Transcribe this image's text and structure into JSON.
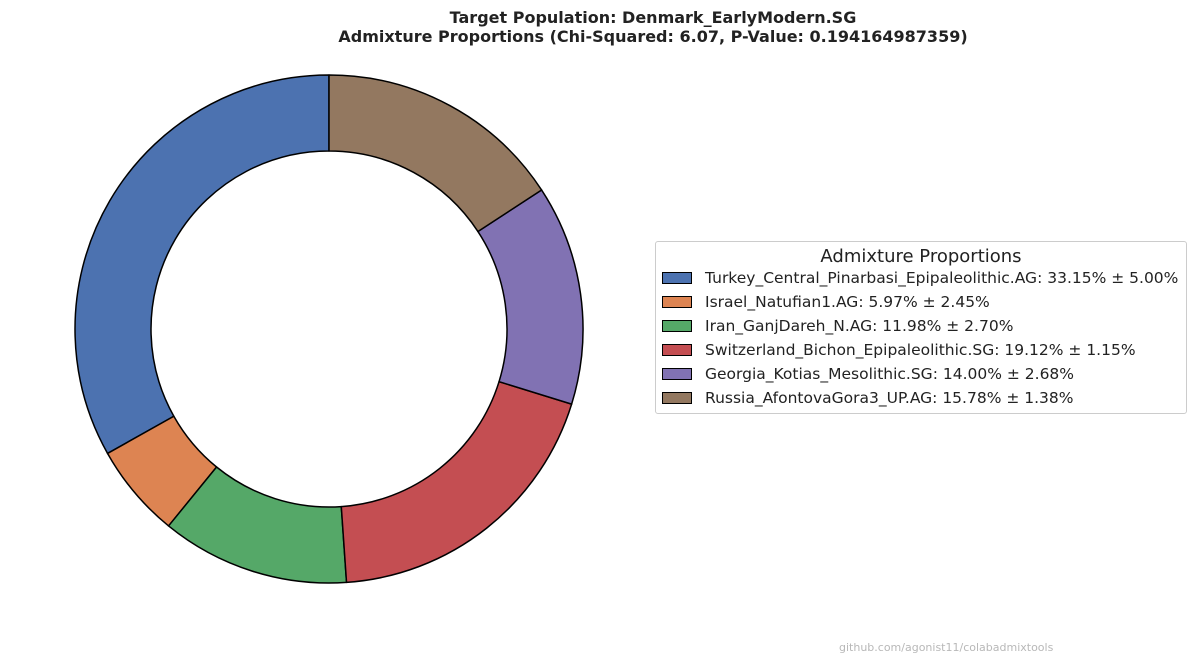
{
  "title_line1": "Target Population: Denmark_EarlyModern.SG",
  "title_line2": "Admixture Proportions (Chi-Squared: 6.07, P-Value: 0.194164987359)",
  "legend_title": "Admixture Proportions",
  "footer": "github.com/agonist11/colabadmixtools",
  "chart_data": {
    "type": "pie",
    "variant": "donut",
    "title": "Target Population: Denmark_EarlyModern.SG\nAdmixture Proportions (Chi-Squared: 6.07, P-Value: 0.194164987359)",
    "legend_position": "right",
    "slices": [
      {
        "name": "Turkey_Central_Pinarbasi_Epipaleolithic.AG",
        "value": 33.15,
        "error": 5.0,
        "label": "Turkey_Central_Pinarbasi_Epipaleolithic.AG: 33.15% ± 5.00%",
        "color": "#4c72b0"
      },
      {
        "name": "Israel_Natufian1.AG",
        "value": 5.97,
        "error": 2.45,
        "label": "Israel_Natufian1.AG: 5.97% ± 2.45%",
        "color": "#dd8452"
      },
      {
        "name": "Iran_GanjDareh_N.AG",
        "value": 11.98,
        "error": 2.7,
        "label": "Iran_GanjDareh_N.AG: 11.98% ± 2.70%",
        "color": "#55a868"
      },
      {
        "name": "Switzerland_Bichon_Epipaleolithic.SG",
        "value": 19.12,
        "error": 1.15,
        "label": "Switzerland_Bichon_Epipaleolithic.SG: 19.12% ± 1.15%",
        "color": "#c44e52"
      },
      {
        "name": "Georgia_Kotias_Mesolithic.SG",
        "value": 14.0,
        "error": 2.68,
        "label": "Georgia_Kotias_Mesolithic.SG: 14.00% ± 2.68%",
        "color": "#8172b3"
      },
      {
        "name": "Russia_AfontovaGora3_UP.AG",
        "value": 15.78,
        "error": 1.38,
        "label": "Russia_AfontovaGora3_UP.AG: 15.78% ± 1.38%",
        "color": "#937860"
      }
    ]
  }
}
